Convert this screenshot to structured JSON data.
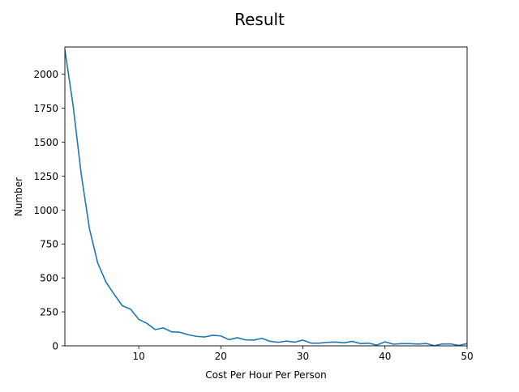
{
  "chart_data": {
    "type": "line",
    "title": "Result",
    "xlabel": "Cost Per Hour Per Person",
    "ylabel": "Number",
    "xlim": [
      1,
      50
    ],
    "ylim": [
      0,
      2200
    ],
    "x_ticks": [
      10,
      20,
      30,
      40,
      50
    ],
    "y_ticks": [
      0,
      250,
      500,
      750,
      1000,
      1250,
      1500,
      1750,
      2000
    ],
    "x_tick_labels": [
      "10",
      "20",
      "30",
      "40",
      "50"
    ],
    "y_tick_labels": [
      "0",
      "250",
      "500",
      "750",
      "1000",
      "1250",
      "1500",
      "1750",
      "2000"
    ],
    "grid": false,
    "series": [
      {
        "color": "#1f77b4",
        "x": [
          1,
          2,
          3,
          4,
          5,
          6,
          7,
          8,
          9,
          10,
          11,
          12,
          13,
          14,
          15,
          16,
          17,
          18,
          19,
          20,
          21,
          22,
          23,
          24,
          25,
          26,
          27,
          28,
          29,
          30,
          31,
          32,
          33,
          34,
          35,
          36,
          37,
          38,
          39,
          40,
          41,
          42,
          43,
          44,
          45,
          46,
          47,
          48,
          49,
          50
        ],
        "y": [
          2180,
          1770,
          1260,
          860,
          610,
          470,
          380,
          295,
          270,
          195,
          165,
          120,
          132,
          103,
          100,
          82,
          70,
          65,
          78,
          73,
          45,
          60,
          44,
          42,
          55,
          33,
          26,
          35,
          27,
          42,
          20,
          20,
          26,
          28,
          22,
          33,
          17,
          20,
          5,
          30,
          12,
          16,
          16,
          13,
          17,
          1,
          14,
          14,
          3,
          17
        ]
      }
    ]
  }
}
